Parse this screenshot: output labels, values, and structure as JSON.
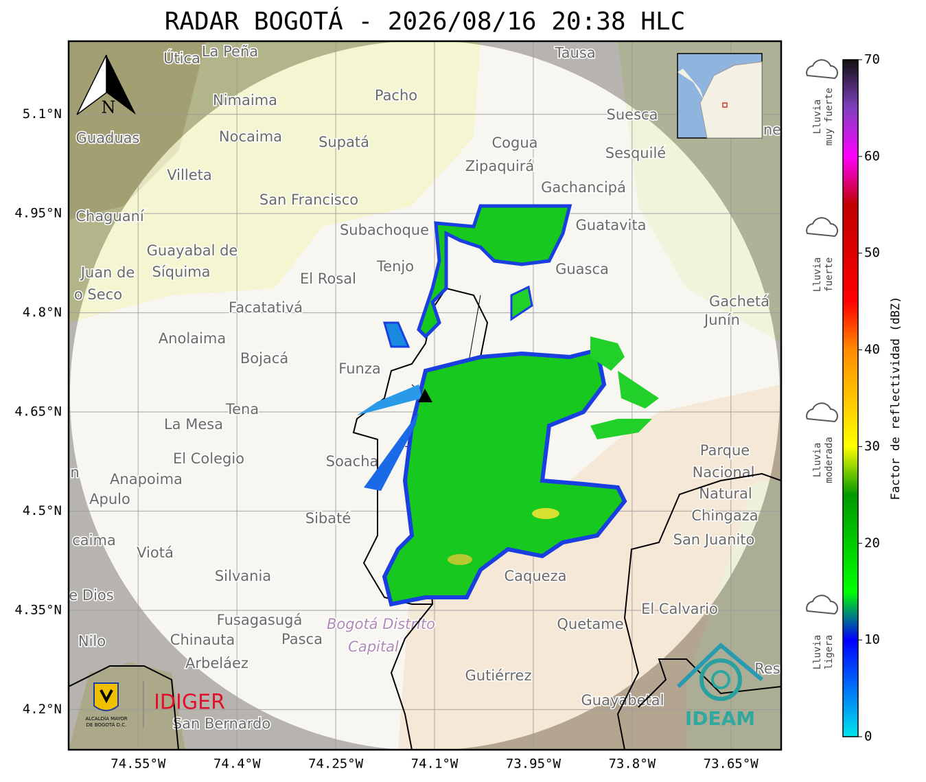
{
  "title": "RADAR BOGOTÁ - 2026/08/16 20:38 HLC",
  "lat_ticks": [
    {
      "value": 5.1,
      "label": "5.1°N"
    },
    {
      "value": 4.95,
      "label": "4.95°N"
    },
    {
      "value": 4.8,
      "label": "4.8°N"
    },
    {
      "value": 4.65,
      "label": "4.65°N"
    },
    {
      "value": 4.5,
      "label": "4.5°N"
    },
    {
      "value": 4.35,
      "label": "4.35°N"
    },
    {
      "value": 4.2,
      "label": "4.2°N"
    }
  ],
  "lon_ticks": [
    {
      "value": -74.55,
      "label": "74.55°W"
    },
    {
      "value": -74.4,
      "label": "74.4°W"
    },
    {
      "value": -74.25,
      "label": "74.25°W"
    },
    {
      "value": -74.1,
      "label": "74.1°W"
    },
    {
      "value": -73.95,
      "label": "73.95°W"
    },
    {
      "value": -73.8,
      "label": "73.8°W"
    },
    {
      "value": -73.65,
      "label": "73.65°W"
    }
  ],
  "colorbar": {
    "label": "Factor de reflectividad (dBZ)",
    "lim": [
      0,
      70
    ],
    "ticks": [
      0,
      10,
      20,
      30,
      40,
      50,
      60,
      70
    ],
    "stops": [
      {
        "value": 0,
        "color": "#00e5ee"
      },
      {
        "value": 10,
        "color": "#0000ff"
      },
      {
        "value": 15,
        "color": "#00ff00"
      },
      {
        "value": 25,
        "color": "#009900"
      },
      {
        "value": 30,
        "color": "#ffff00"
      },
      {
        "value": 40,
        "color": "#ff8c00"
      },
      {
        "value": 45,
        "color": "#ff0000"
      },
      {
        "value": 55,
        "color": "#c00000"
      },
      {
        "value": 60,
        "color": "#ff00ff"
      },
      {
        "value": 65,
        "color": "#8040c0"
      },
      {
        "value": 70,
        "color": "#111111"
      }
    ]
  },
  "rain_levels": [
    [
      "Lluvia",
      "muy fuerte"
    ],
    [
      "Lluvia",
      "fuerte"
    ],
    [
      "Lluvia",
      "moderada"
    ],
    [
      "Lluvia",
      "ligera"
    ]
  ],
  "north": "N",
  "logos": {
    "idiger": "IDIGER",
    "ideam": "IDEAM",
    "alcaldia": [
      "ALCALDÍA MAYOR",
      "DE BOGOTÁ D.C."
    ]
  },
  "places": [
    "Útica",
    "La Peña",
    "Tausa",
    "Nimaima",
    "Pacho",
    "Guaduas",
    "Nocaima",
    "Supatá",
    "Cogua",
    "Suesca",
    "Sesquilé",
    "Zipaquirá",
    "Villeta",
    "Gachancipá",
    "San Francisco",
    "Chaguaní",
    "Guatavita",
    "Subachoque",
    "Guayabal de",
    "Síquima",
    "Tenjo",
    "Guasca",
    "Juan de",
    "El Rosal",
    "o Seco",
    "Gachetá",
    "Junín",
    "Facatativá",
    "Anolaima",
    "Bojacá",
    "Funza",
    "Tena",
    "La Mesa",
    "El Colegio",
    "Parque",
    "Soacha",
    "Nacional",
    "Anapoima",
    "n",
    "Natural",
    "Apulo",
    "Chingaza",
    "Sibaté",
    "San Juanito",
    "caima",
    "Viotá",
    "Silvania",
    "Caqueza",
    "e Dios",
    "El Calvario",
    "Fusagasugá",
    "Bogotá Distrito",
    "Quetame",
    "Nilo",
    "Chinauta",
    "Pasca",
    "Capital",
    "Arbeláez",
    "Res",
    "Gutiérrez",
    "Guayabetal",
    "San Bernardo",
    "ne"
  ]
}
